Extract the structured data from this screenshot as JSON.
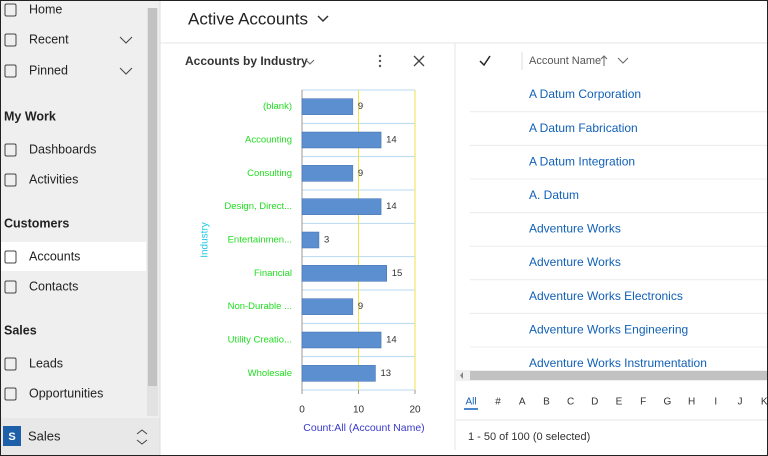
{
  "sidebar": {
    "top": [
      "Home",
      "Recent",
      "Pinned"
    ],
    "sections": [
      {
        "title": "My Work",
        "items": [
          "Dashboards",
          "Activities"
        ]
      },
      {
        "title": "Customers",
        "items": [
          "Accounts",
          "Contacts"
        ]
      },
      {
        "title": "Sales",
        "items": [
          "Leads",
          "Opportunities"
        ]
      }
    ],
    "area_badge": "S",
    "area": "Sales"
  },
  "header": {
    "title": "Active Accounts"
  },
  "chart_data": {
    "type": "bar",
    "horizontal": true,
    "title": "Accounts by Industry",
    "x_label": "Count:All (Account Name)",
    "y_label": "Industry",
    "categories": [
      "(blank)",
      "Accounting",
      "Consulting",
      "Design, Direct...",
      "Entertainmen...",
      "Financial",
      "Non-Durable ...",
      "Utility Creatio...",
      "Wholesale"
    ],
    "values": [
      9,
      14,
      9,
      14,
      3,
      15,
      9,
      14,
      13
    ],
    "color": "#5b8fd0",
    "label_color": "#22dd22",
    "xlim": [
      0,
      20
    ],
    "xticks": [
      0,
      10,
      20
    ],
    "grid": true
  },
  "grid": {
    "column": "Account Name",
    "rows": [
      "A Datum Corporation",
      "A Datum Fabrication",
      "A Datum Integration",
      "A. Datum",
      "Adventure Works",
      "Adventure Works",
      "Adventure Works Electronics",
      "Adventure Works Engineering",
      "Adventure Works Instrumentation"
    ],
    "jump_bar": [
      "All",
      "#",
      "A",
      "B",
      "C",
      "D",
      "E",
      "F",
      "G",
      "H",
      "I",
      "J",
      "K"
    ],
    "footer": "1 - 50 of 100 (0 selected)"
  }
}
